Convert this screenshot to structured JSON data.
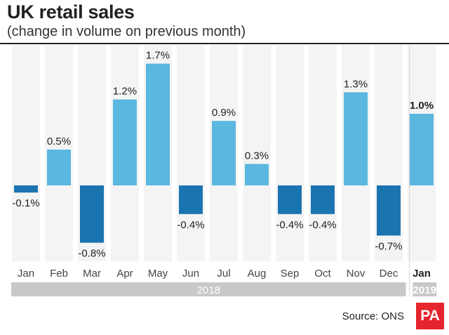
{
  "header": {
    "title": "UK retail sales",
    "subtitle": "(change in volume on previous month)"
  },
  "chart_data": {
    "type": "bar",
    "title": "UK retail sales",
    "subtitle": "(change in volume on previous month)",
    "categories": [
      "Jan",
      "Feb",
      "Mar",
      "Apr",
      "May",
      "Jun",
      "Jul",
      "Aug",
      "Sep",
      "Oct",
      "Nov",
      "Dec",
      "Jan"
    ],
    "values": [
      -0.1,
      0.5,
      -0.8,
      1.2,
      1.7,
      -0.4,
      0.9,
      0.3,
      -0.4,
      -0.4,
      1.3,
      -0.7,
      1.0
    ],
    "labels": [
      "-0.1%",
      "0.5%",
      "-0.8%",
      "1.2%",
      "1.7%",
      "-0.4%",
      "0.9%",
      "0.3%",
      "-0.4%",
      "-0.4%",
      "1.3%",
      "-0.7%",
      "1.0%"
    ],
    "highlight_index": 12,
    "year_groups": [
      {
        "label": "2018",
        "start_index": 0,
        "end_index": 11
      },
      {
        "label": "2019",
        "start_index": 12,
        "end_index": 12
      }
    ],
    "xlabel": "",
    "ylabel": "",
    "ylim": [
      -1.0,
      1.9
    ],
    "colors": {
      "positive": "#5ab7e0",
      "negative": "#1a74b0",
      "column_bg": "#f4f4f4",
      "divider": "#d8d8d8",
      "year_bar": "#c8c8c8"
    }
  },
  "footer": {
    "source": "Source: ONS",
    "logo_text": "PA",
    "logo_color": "#e5262e"
  }
}
